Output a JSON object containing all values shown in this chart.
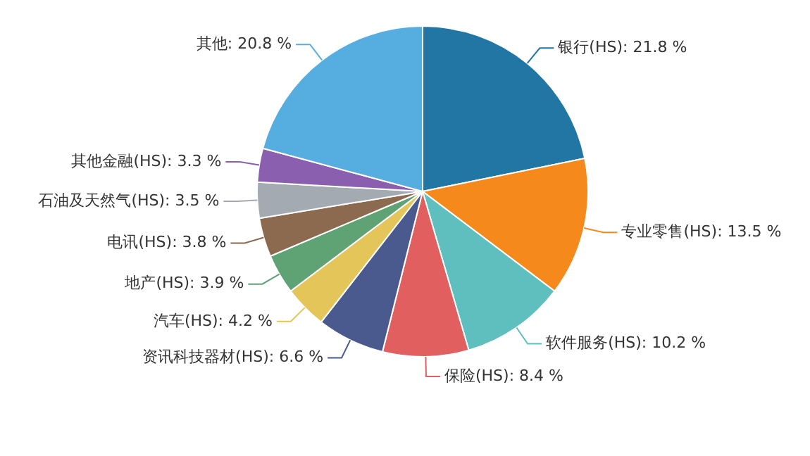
{
  "chart_data": {
    "type": "pie",
    "categories": [
      "银行(HS)",
      "专业零售(HS)",
      "软件服务(HS)",
      "保险(HS)",
      "资讯科技器材(HS)",
      "汽车(HS)",
      "地产(HS)",
      "电讯(HS)",
      "石油及天然气(HS)",
      "其他金融(HS)",
      "其他"
    ],
    "values": [
      21.8,
      13.5,
      10.2,
      8.4,
      6.6,
      4.2,
      3.9,
      3.8,
      3.5,
      3.3,
      20.8
    ],
    "value_labels": [
      "21.8 %",
      "13.5 %",
      "10.2 %",
      "8.4 %",
      "6.6 %",
      "4.2 %",
      "3.9 %",
      "3.8 %",
      "3.5 %",
      "3.3 %",
      "20.8 %"
    ],
    "colors": [
      "#2276a3",
      "#f5891b",
      "#5fbfbf",
      "#e15f5f",
      "#4a5a8e",
      "#e4c55a",
      "#5fa274",
      "#8c6a4f",
      "#a3aab2",
      "#8a5fb0",
      "#56aee0"
    ],
    "legend": false
  }
}
